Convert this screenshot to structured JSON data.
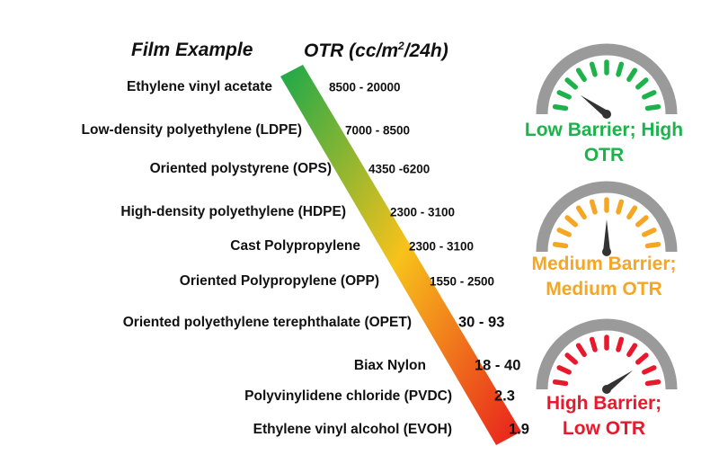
{
  "headers": {
    "film": "Film Example",
    "otr_prefix": "OTR (cc/m",
    "otr_sup": "2",
    "otr_suffix": "/24h)"
  },
  "rows": [
    {
      "film": "Ethylene vinyl acetate",
      "otr": "8500 - 20000"
    },
    {
      "film": "Low-density polyethylene (LDPE)",
      "otr": "7000 - 8500"
    },
    {
      "film": "Oriented polystyrene (OPS)",
      "otr": "4350 -6200"
    },
    {
      "film": "High-density polyethylene (HDPE)",
      "otr": "2300 - 3100"
    },
    {
      "film": "Cast Polypropylene",
      "otr": "2300 - 3100"
    },
    {
      "film": "Oriented Polypropylene (OPP)",
      "otr": "1550 - 2500"
    },
    {
      "film": "Oriented polyethylene terephthalate (OPET)",
      "otr": "30 - 93"
    },
    {
      "film": "Biax Nylon",
      "otr": "18 - 40"
    },
    {
      "film": "Polyvinylidene chloride (PVDC)",
      "otr": "2.3"
    },
    {
      "film": "Ethylene vinyl alcohol (EVOH)",
      "otr": "1.9"
    }
  ],
  "gauges": [
    {
      "line1": "Low Barrier; High",
      "line2": "OTR",
      "color": "#1db24b",
      "needle_level": 0.2
    },
    {
      "line1": "Medium Barrier;",
      "line2": "Medium OTR",
      "color": "#f5a623",
      "needle_level": 0.5
    },
    {
      "line1": "High Barrier;",
      "line2": "Low OTR",
      "color": "#e8192c",
      "needle_level": 0.8
    }
  ],
  "colors": {
    "gradient_top": "#1aa84a",
    "gradient_mid": "#f7c21b",
    "gradient_bottom": "#e81d1d",
    "gauge_gray": "#9a9a9a",
    "needle": "#333333"
  }
}
